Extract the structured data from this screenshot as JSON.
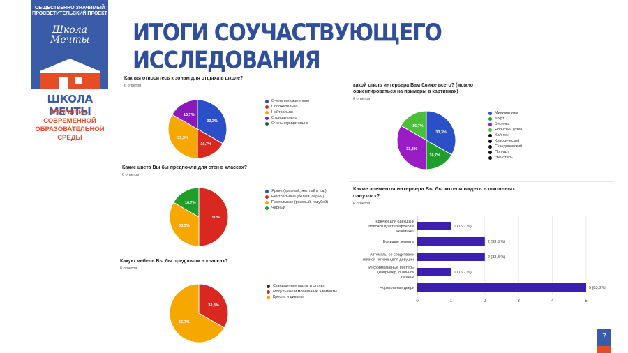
{
  "brand": {
    "top": [
      "ОБЩЕСТВЕННО ЗНАЧИМЫЙ",
      "ПРОСВЕТИТЕЛЬСКИЙ ПРОЕКТ"
    ],
    "logo": [
      "Школа",
      "Мечты"
    ],
    "title": "ШКОЛА МЕЧТЫ",
    "subtitle": [
      "РАЗВИТИЕ СОВРЕМЕННОЙ",
      "ОБРАЗОВАТЕЛЬНОЙ СРЕДЫ"
    ],
    "colors": {
      "blue": "#3a5ba8",
      "orange": "#e44d26"
    }
  },
  "title": "ИТОГИ СОУЧАСТВУЮЩЕГО ИССЛЕДОВАНИЯ",
  "page_number": "7",
  "chart_data": [
    {
      "type": "pie",
      "title": "Как вы относитесь к зонам для отдыха в школе?",
      "subtitle": "6 ответов",
      "slices": [
        {
          "name": "Очень положительно",
          "value": 33.3,
          "label": "33,3%",
          "color": "#2b4fc7"
        },
        {
          "name": "Положительно",
          "value": 16.7,
          "label": "16,7%",
          "color": "#d8281f"
        },
        {
          "name": "Нейтрально",
          "value": 33.3,
          "label": "33,3%",
          "color": "#f7a800"
        },
        {
          "name": "Отрицательно",
          "value": 16.7,
          "label": "16,7%",
          "color": "#8a19b8"
        },
        {
          "name": "Очень отрицательно",
          "value": 0,
          "label": "",
          "color": "#0b6b2e"
        }
      ],
      "legend_position": "right"
    },
    {
      "type": "pie",
      "title": "Какие цвета Вы бы предпочли для стен в классах?",
      "subtitle": "6 ответов",
      "slices": [
        {
          "name": "Яркие (красный, желтый и т.д.)",
          "value": 0,
          "label": "",
          "color": "#2b4fc7"
        },
        {
          "name": "Нейтральные (белый, серый)",
          "value": 50,
          "label": "50%",
          "color": "#d8281f"
        },
        {
          "name": "Пастельные (розовый, голубой)",
          "value": 33.3,
          "label": "33,3%",
          "color": "#f7a800"
        },
        {
          "name": "Черный",
          "value": 16.7,
          "label": "16,7%",
          "color": "#1f9e2c"
        }
      ],
      "legend_position": "right"
    },
    {
      "type": "pie",
      "title": "Какую мебель Вы бы предпочли в классах?",
      "subtitle": "6 ответов",
      "slices": [
        {
          "name": "Стандартные парты и стулья",
          "value": 0,
          "label": "",
          "color": "#1a2a7a"
        },
        {
          "name": "Модульные и мобильные элементы",
          "value": 33.3,
          "label": "33,3%",
          "color": "#d8281f"
        },
        {
          "name": "Кресла и диваны",
          "value": 66.7,
          "label": "66,7%",
          "color": "#f7a800"
        }
      ],
      "legend_position": "right"
    },
    {
      "type": "pie",
      "title": "какой стиль интерьера Вам ближе всего? (можно ориентироваться на примеры в картинках)",
      "subtitle": "6 ответов",
      "slices": [
        {
          "name": "Минимализм",
          "value": 33.3,
          "label": "33,3%",
          "color": "#2b4fc7"
        },
        {
          "name": "Лофт",
          "value": 16.7,
          "label": "16,7%",
          "color": "#1f9e2c"
        },
        {
          "name": "Бионика",
          "value": 33.3,
          "label": "33,3%",
          "color": "#9a1cc4"
        },
        {
          "name": "Японский (дзен)",
          "value": 16.7,
          "label": "16,7%",
          "color": "#4cbf3a"
        },
        {
          "name": "Хай-тек",
          "value": 0,
          "label": "",
          "color": "#111111"
        },
        {
          "name": "Классический",
          "value": 0,
          "label": "",
          "color": "#111111"
        },
        {
          "name": "Скандинавский",
          "value": 0,
          "label": "",
          "color": "#111111"
        },
        {
          "name": "Поп-арт",
          "value": 0,
          "label": "",
          "color": "#111111"
        },
        {
          "name": "Эко-стиль",
          "value": 0,
          "label": "",
          "color": "#111111"
        }
      ],
      "legend_position": "right"
    },
    {
      "type": "bar",
      "orientation": "horizontal",
      "title": "Какие элементы интерьера Вы бы хотели видеть в школьных санузлах?",
      "subtitle": "6 ответов",
      "categories": [
        "Крючки для одежды и полочки для телефонов в «кабинке»",
        "Большие зеркала",
        "Автоматы со средствами личной гигиены для девушек",
        "Информативные постеры (например, о личной гигиене",
        "Нормальные двери"
      ],
      "values": [
        1,
        2,
        2,
        1,
        5
      ],
      "labels": [
        "1 (16,7 %)",
        "2 (33,3 %)",
        "2 (33,3 %)",
        "1 (16,7 %)",
        "5 (83,3 %)"
      ],
      "xlim": [
        0,
        5
      ],
      "xticks": [
        "0",
        "1",
        "2",
        "3",
        "4",
        "5"
      ],
      "bar_color": "#3b1fb0",
      "grid": true
    }
  ]
}
